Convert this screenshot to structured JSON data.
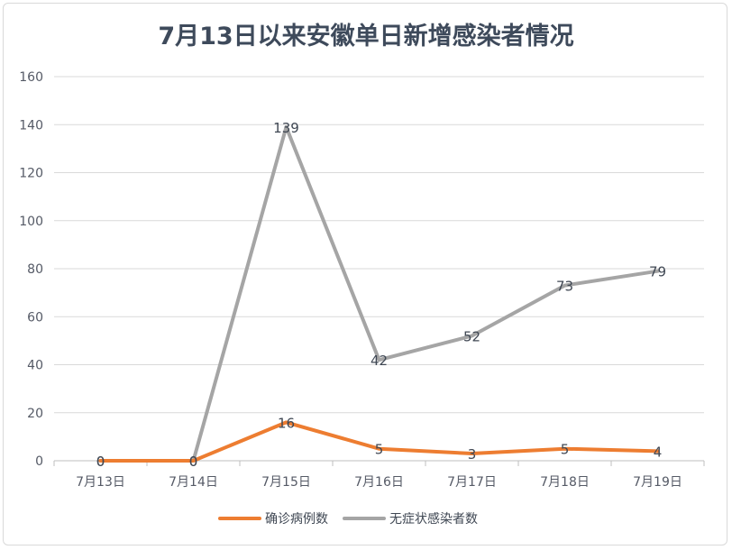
{
  "chart_data": {
    "type": "line",
    "title": "7月13日以来安徽单日新增感染者情况",
    "categories": [
      "7月13日",
      "7月14日",
      "7月15日",
      "7月16日",
      "7月17日",
      "7月18日",
      "7月19日"
    ],
    "ylim": [
      0,
      160
    ],
    "yticks": [
      0,
      20,
      40,
      60,
      80,
      100,
      120,
      140,
      160
    ],
    "grid": true,
    "legend_position": "bottom",
    "series": [
      {
        "name": "确诊病例数",
        "color": "#ed7d31",
        "values": [
          0,
          0,
          16,
          5,
          3,
          5,
          4
        ]
      },
      {
        "name": "无症状感染者数",
        "color": "#a5a5a5",
        "values": [
          0,
          0,
          139,
          42,
          52,
          73,
          79
        ]
      }
    ]
  }
}
